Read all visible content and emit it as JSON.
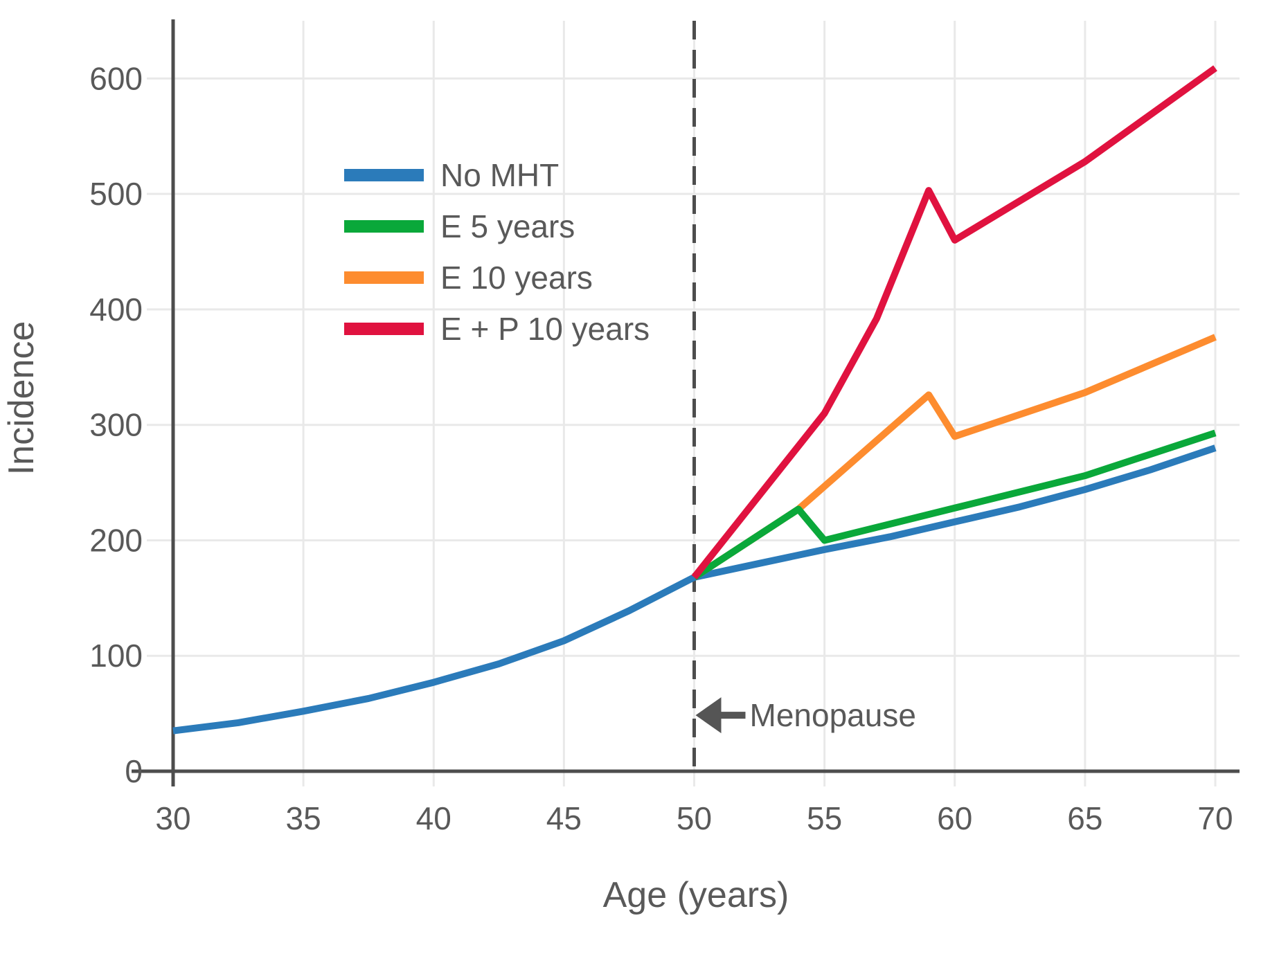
{
  "colors": {
    "axis": "#4d4d4d",
    "grid": "#e9e9e9",
    "text": "#595959",
    "dashed_line": "#4d4d4d",
    "arrow": "#555555",
    "background": "#ffffff"
  },
  "chart_data": {
    "type": "line",
    "title": "",
    "xlabel": "Age (years)",
    "ylabel": "Incidence",
    "xlim": [
      30,
      70
    ],
    "ylim": [
      0,
      650
    ],
    "xticks": [
      30,
      35,
      40,
      45,
      50,
      55,
      60,
      65,
      70
    ],
    "yticks": [
      0,
      100,
      200,
      300,
      400,
      500,
      600
    ],
    "grid": true,
    "legend_position": "upper-left-inside",
    "series": [
      {
        "name": "No MHT",
        "color": "#2b7bba",
        "points": [
          [
            30,
            35
          ],
          [
            32.5,
            42
          ],
          [
            35,
            52
          ],
          [
            37.5,
            63
          ],
          [
            40,
            77
          ],
          [
            42.5,
            93
          ],
          [
            45,
            113
          ],
          [
            47.5,
            139
          ],
          [
            50,
            168
          ],
          [
            52.5,
            180
          ],
          [
            55,
            192
          ],
          [
            57.5,
            203
          ],
          [
            60,
            216
          ],
          [
            62.5,
            229
          ],
          [
            65,
            244
          ],
          [
            67.5,
            261
          ],
          [
            70,
            280
          ]
        ]
      },
      {
        "name": "E 5 years",
        "color": "#0aa83a",
        "points": [
          [
            50,
            168
          ],
          [
            54,
            227
          ],
          [
            55,
            200
          ],
          [
            60,
            228
          ],
          [
            65,
            256
          ],
          [
            70,
            293
          ]
        ]
      },
      {
        "name": "E 10 years",
        "color": "#fd8c2f",
        "points": [
          [
            50,
            168
          ],
          [
            54,
            227
          ],
          [
            59,
            326
          ],
          [
            60,
            290
          ],
          [
            65,
            328
          ],
          [
            70,
            376
          ]
        ]
      },
      {
        "name": "E + P 10 years",
        "color": "#e0123f",
        "points": [
          [
            50,
            168
          ],
          [
            55,
            310
          ],
          [
            57,
            392
          ],
          [
            59,
            503
          ],
          [
            60,
            460
          ],
          [
            65,
            528
          ],
          [
            70,
            609
          ]
        ]
      }
    ],
    "draw_order": [
      "No MHT",
      "E 10 years",
      "E 5 years",
      "E + P 10 years"
    ],
    "vline": {
      "x": 50,
      "style": "dashed",
      "label": "Menopause",
      "label_value": 48.5
    }
  }
}
